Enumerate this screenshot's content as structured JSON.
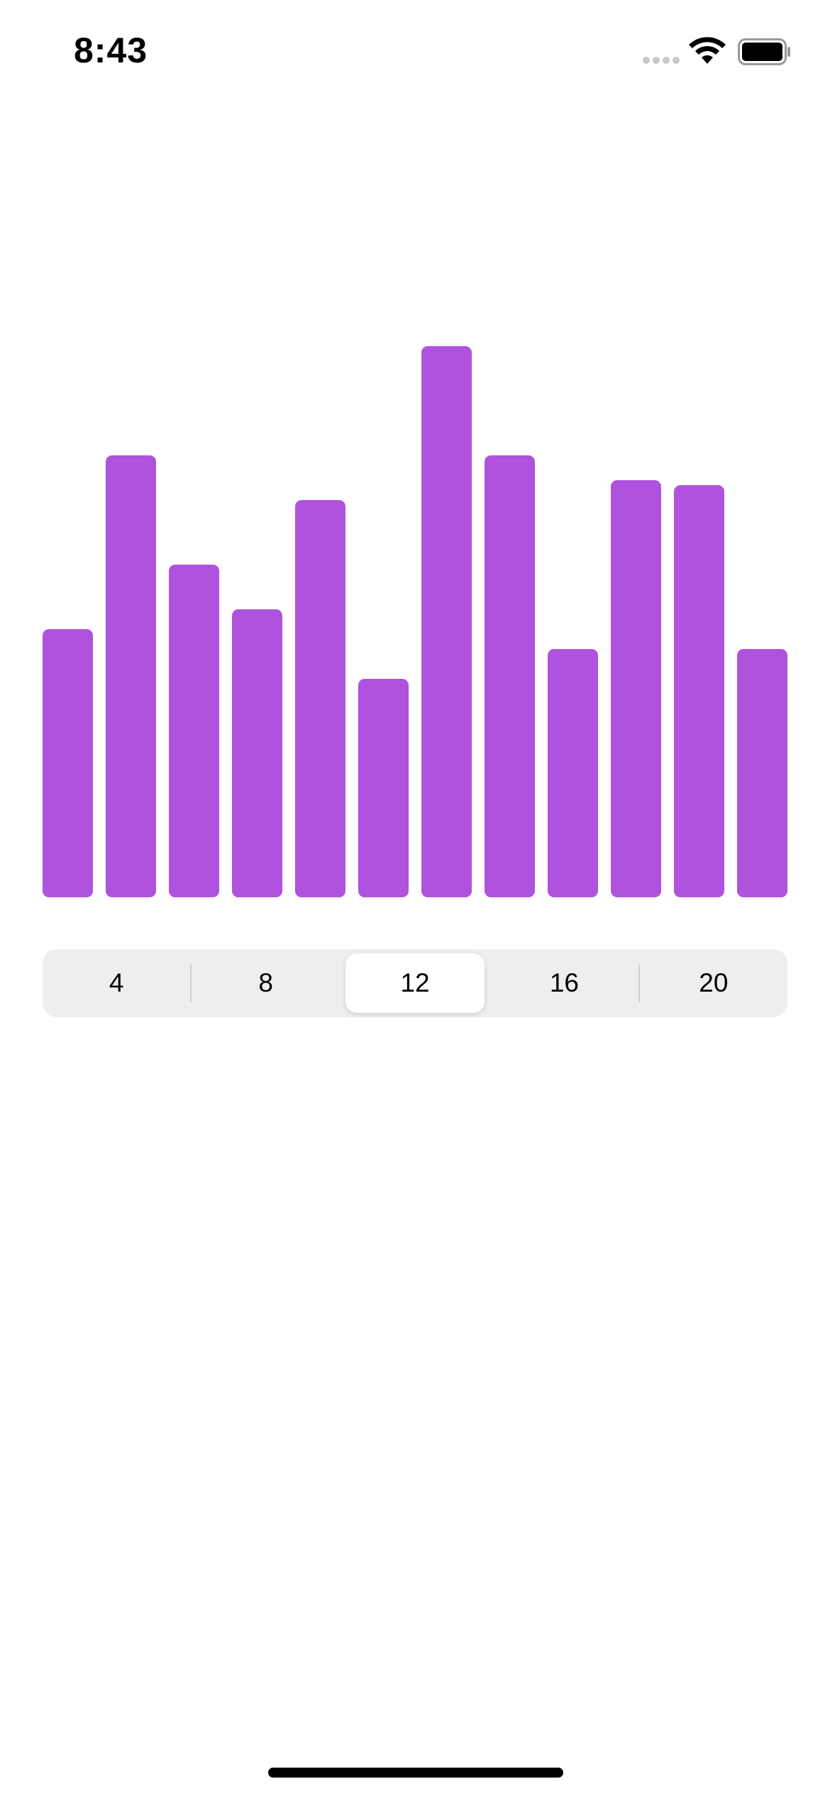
{
  "status_bar": {
    "time": "8:43",
    "icons": [
      "signal-dots-icon",
      "wifi-icon",
      "battery-icon"
    ]
  },
  "chart_data": {
    "type": "bar",
    "bar_color": "#af52de",
    "values": [
      54,
      89,
      67,
      58,
      80,
      44,
      111,
      89,
      50,
      84,
      83,
      50
    ],
    "ylim": [
      0,
      120
    ]
  },
  "segmented_control": {
    "options": [
      "4",
      "8",
      "12",
      "16",
      "20"
    ],
    "selected_index": 2,
    "selected_value": "12"
  }
}
